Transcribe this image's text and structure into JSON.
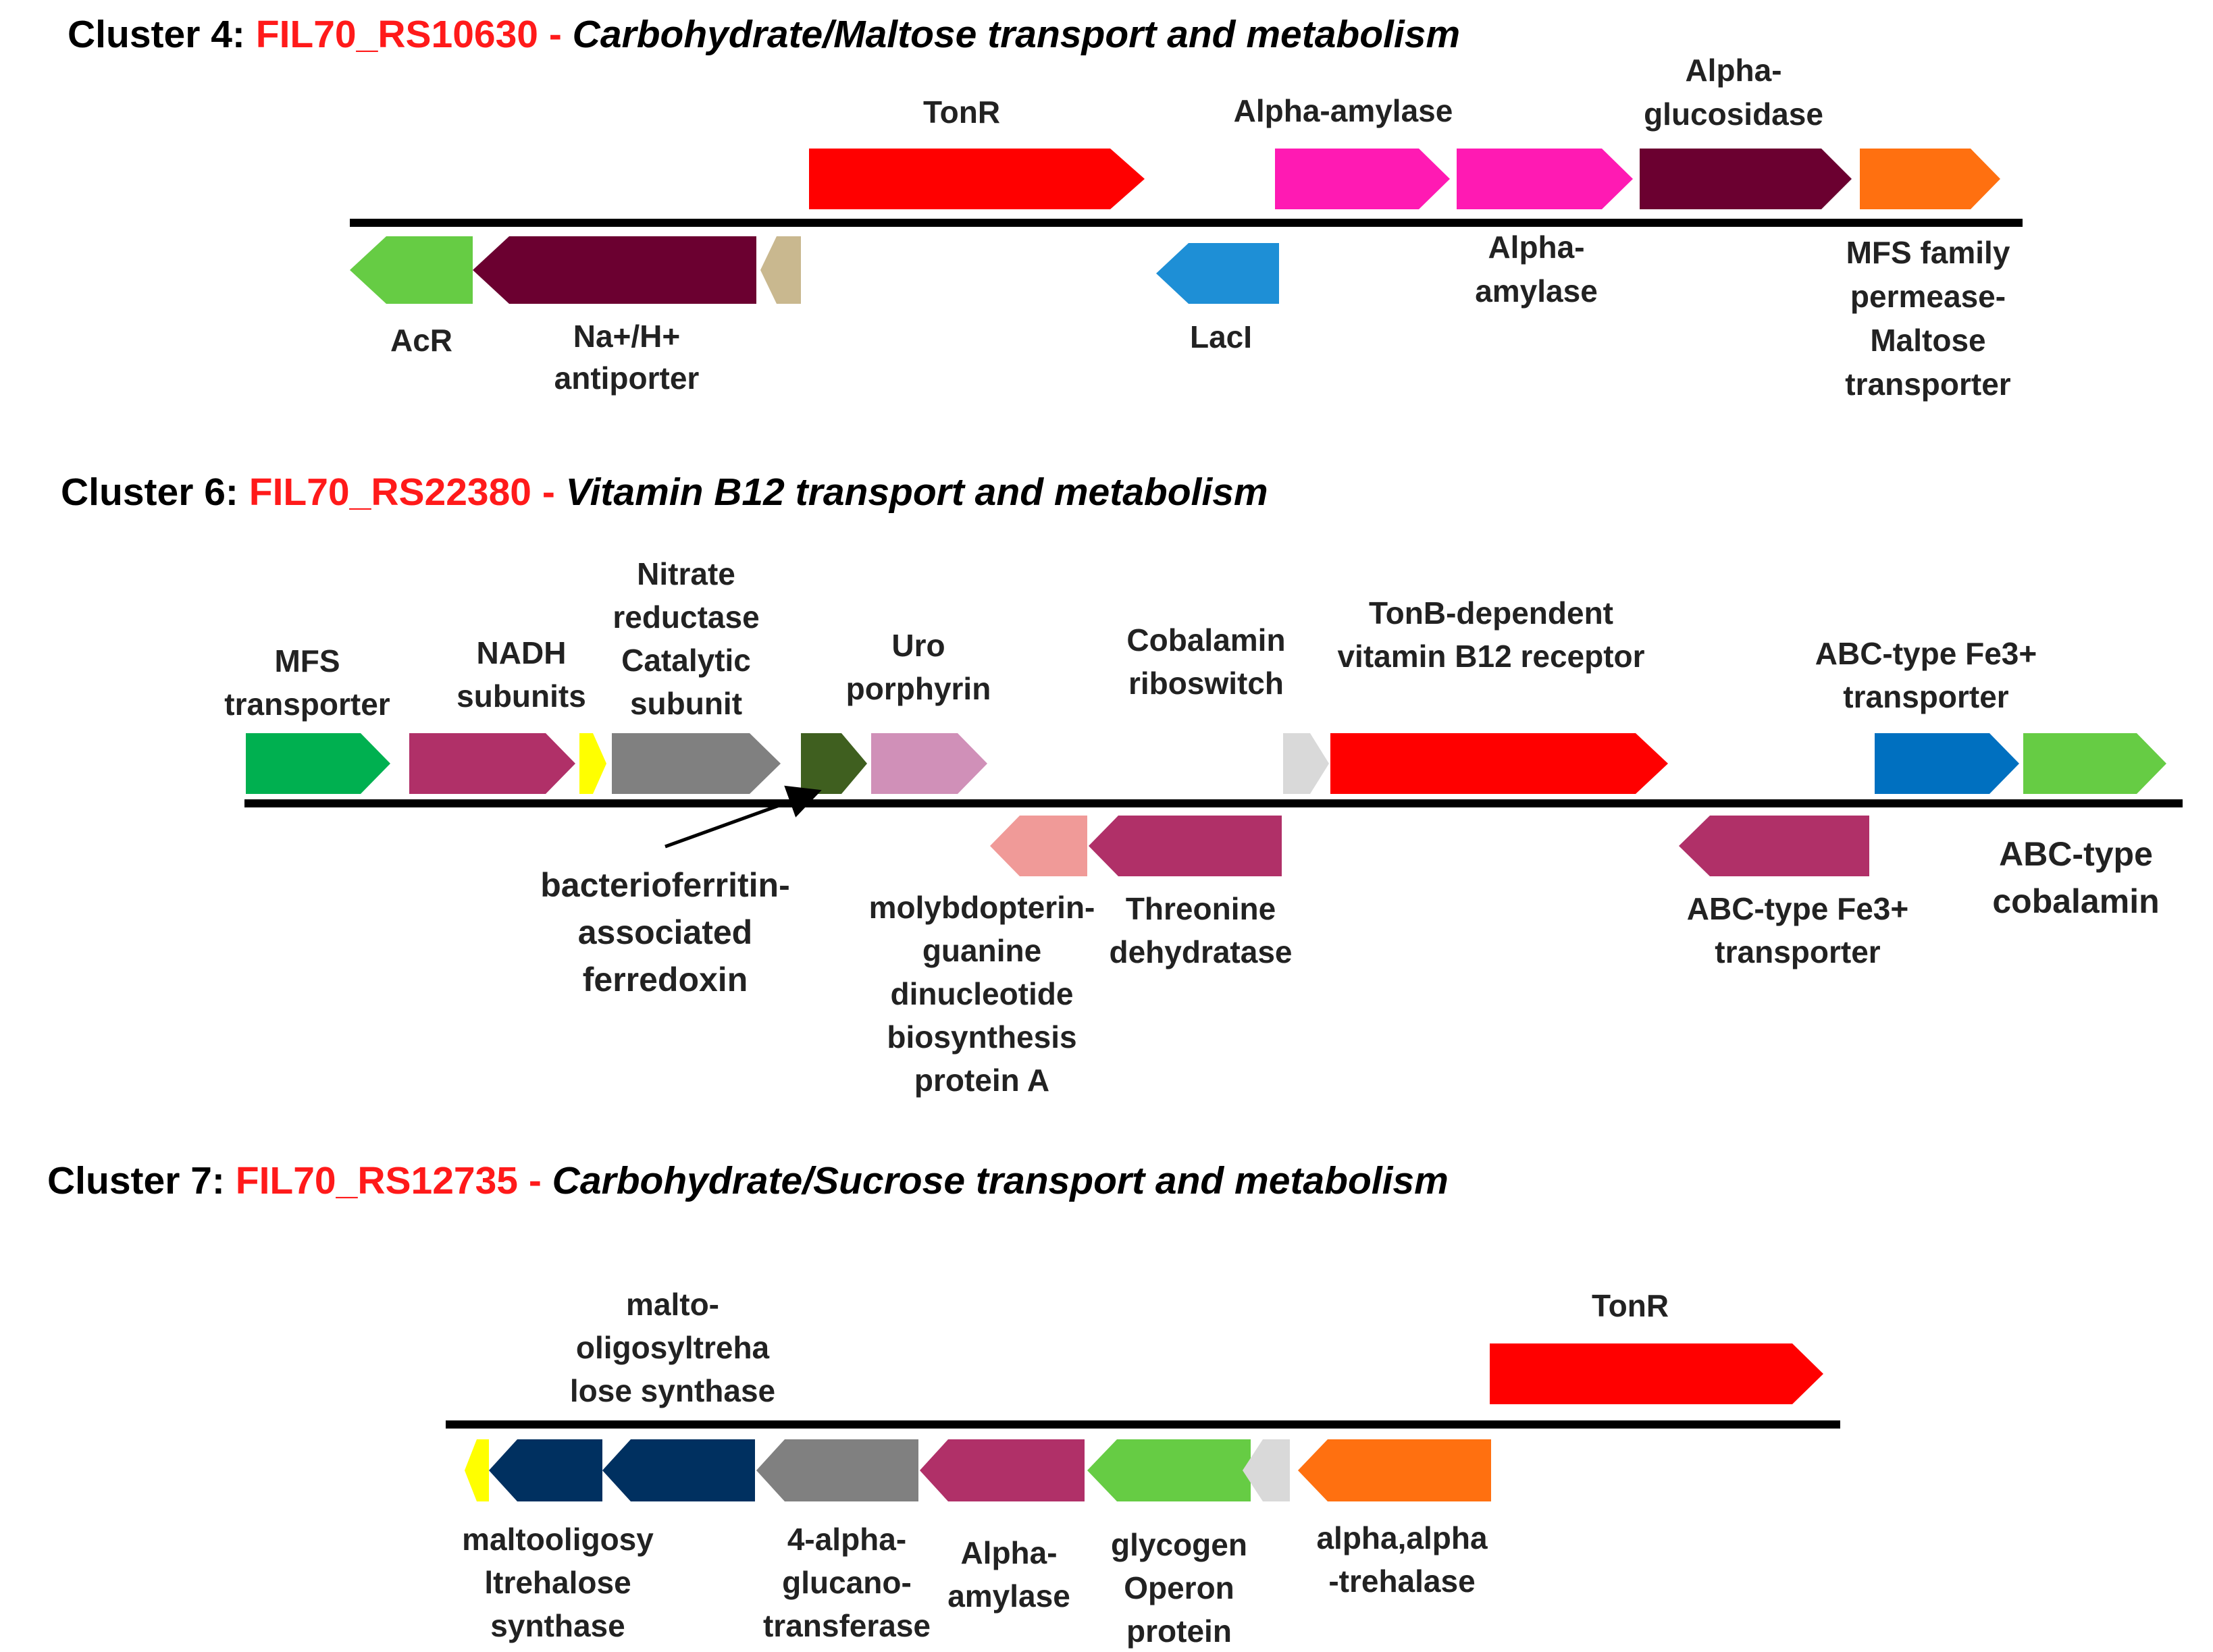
{
  "clusters": [
    {
      "title": {
        "prefix": "Cluster 4: ",
        "gene_id": "FIL70_RS10630",
        "separator": " - ",
        "description": "Carbohydrate/Maltose transport and metabolism"
      },
      "genes": [
        {
          "key": "tonr",
          "strand": "+",
          "color": "#ff0000",
          "label_lines": [
            "TonR"
          ]
        },
        {
          "key": "alpha-amylase-1",
          "strand": "+",
          "color": "#ff1ab3",
          "label_lines": [
            "Alpha-amylase"
          ]
        },
        {
          "key": "alpha-amylase-2",
          "strand": "+",
          "color": "#ff1ab3",
          "label_lines": [
            "Alpha-",
            "amylase"
          ]
        },
        {
          "key": "alpha-glucosidase",
          "strand": "+",
          "color": "#6b0030",
          "label_lines": [
            "Alpha-",
            "glucosidase"
          ]
        },
        {
          "key": "mfs-permease",
          "strand": "+",
          "color": "#ff7010",
          "label_lines": [
            "MFS family",
            "permease-",
            "Maltose",
            "transporter"
          ]
        },
        {
          "key": "acr",
          "strand": "-",
          "color": "#66cc44",
          "label_lines": [
            "AcR"
          ]
        },
        {
          "key": "na-h-antiporter",
          "strand": "-",
          "color": "#6b0030",
          "label_lines": [
            "Na+/H+",
            "antiporter"
          ]
        },
        {
          "key": "small-tan",
          "strand": "-",
          "color": "#c9b88f",
          "label_lines": []
        },
        {
          "key": "laci",
          "strand": "-",
          "color": "#1e8fd6",
          "label_lines": [
            "LacI"
          ]
        }
      ]
    },
    {
      "title": {
        "prefix": "Cluster 6: ",
        "gene_id": "FIL70_RS22380",
        "separator": " - ",
        "description": "Vitamin B12 transport and metabolism"
      },
      "genes": [
        {
          "key": "mfs-transporter",
          "strand": "+",
          "color": "#00b050",
          "label_lines": [
            "MFS",
            "transporter"
          ]
        },
        {
          "key": "nadh-subunits",
          "strand": "+",
          "color": "#b03068",
          "label_lines": [
            "NADH",
            "subunits"
          ]
        },
        {
          "key": "small-yellow",
          "strand": "+",
          "color": "#ffff00",
          "label_lines": []
        },
        {
          "key": "nitrate-reductase",
          "strand": "+",
          "color": "#808080",
          "label_lines": [
            "Nitrate",
            "reductase",
            "Catalytic",
            "subunit"
          ]
        },
        {
          "key": "bacterioferritin",
          "strand": "+",
          "color": "#3f5f1f",
          "label_lines": [
            "bacterioferritin-",
            "associated",
            "ferredoxin"
          ]
        },
        {
          "key": "uroporphyrin",
          "strand": "+",
          "color": "#d090b8",
          "label_lines": [
            "Uro",
            "porphyrin"
          ]
        },
        {
          "key": "cobalamin-riboswitch",
          "strand": "+",
          "color": "#d9d9d9",
          "label_lines": [
            "Cobalamin",
            "riboswitch"
          ]
        },
        {
          "key": "tonb-receptor",
          "strand": "+",
          "color": "#ff0000",
          "label_lines": [
            "TonB-dependent",
            "vitamin B12 receptor"
          ]
        },
        {
          "key": "abc-fe3-upper",
          "strand": "+",
          "color": "#0070c0",
          "label_lines": [
            "ABC-type Fe3+",
            "transporter"
          ]
        },
        {
          "key": "abc-cobalamin",
          "strand": "+",
          "color": "#66cc44",
          "label_lines": [
            "ABC-type",
            "cobalamin"
          ]
        },
        {
          "key": "molybdopterin",
          "strand": "-",
          "color": "#f09a98",
          "label_lines": [
            "molybdopterin-",
            "guanine",
            "dinucleotide",
            "biosynthesis",
            "protein A"
          ]
        },
        {
          "key": "threonine-dehydratase",
          "strand": "-",
          "color": "#b03068",
          "label_lines": [
            "Threonine",
            "dehydratase"
          ]
        },
        {
          "key": "abc-fe3-lower",
          "strand": "-",
          "color": "#b03068",
          "label_lines": [
            "ABC-type Fe3+",
            "transporter"
          ]
        }
      ]
    },
    {
      "title": {
        "prefix": "Cluster 7: ",
        "gene_id": "FIL70_RS12735",
        "separator": " - ",
        "description": "Carbohydrate/Sucrose transport and metabolism"
      },
      "genes": [
        {
          "key": "tonr",
          "strand": "+",
          "color": "#ff0000",
          "label_lines": [
            "TonR"
          ]
        },
        {
          "key": "small-yellow",
          "strand": "-",
          "color": "#ffff00",
          "label_lines": []
        },
        {
          "key": "malto-oligosyltrehalose-synthase",
          "strand": "-",
          "color": "#003060",
          "label_lines": [
            "malto-",
            "oligosyltreha",
            "lose synthase"
          ]
        },
        {
          "key": "maltooligosyltrehalose-synthase",
          "strand": "-",
          "color": "#003060",
          "label_lines": [
            "maltooligosy",
            "ltrehalose",
            "synthase"
          ]
        },
        {
          "key": "4-alpha-glucanotransferase",
          "strand": "-",
          "color": "#808080",
          "label_lines": [
            "4-alpha-",
            "glucano-",
            "transferase"
          ]
        },
        {
          "key": "alpha-amylase",
          "strand": "-",
          "color": "#b03068",
          "label_lines": [
            "Alpha-",
            "amylase"
          ]
        },
        {
          "key": "glycogen-operon",
          "strand": "-",
          "color": "#66cc44",
          "label_lines": [
            "glycogen",
            "Operon",
            "protein"
          ]
        },
        {
          "key": "small-grey",
          "strand": "-",
          "color": "#d9d9d9",
          "label_lines": []
        },
        {
          "key": "alpha-alpha-trehalase",
          "strand": "-",
          "color": "#ff7010",
          "label_lines": [
            "alpha,alpha",
            "-trehalase"
          ]
        }
      ]
    }
  ]
}
